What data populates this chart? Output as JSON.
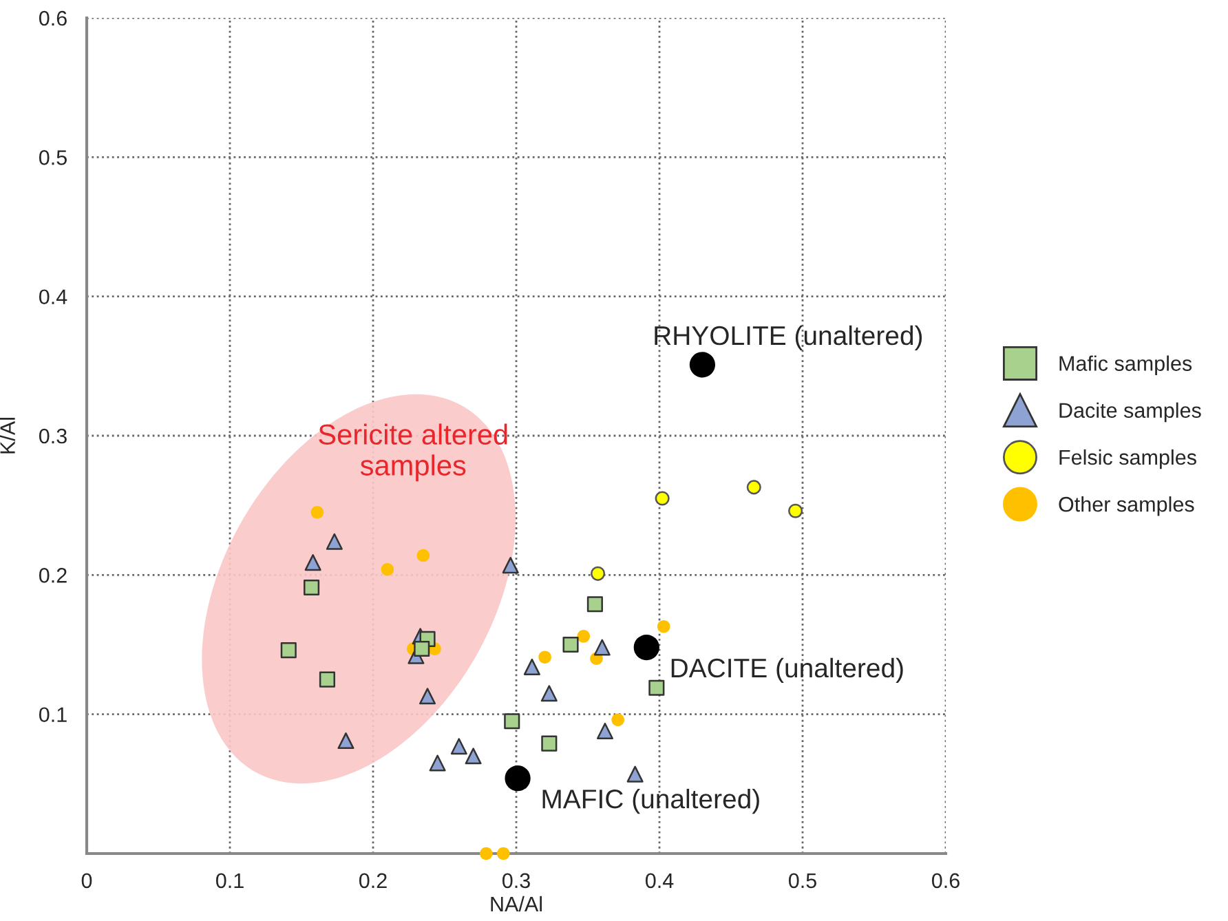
{
  "chart_data": {
    "type": "scatter",
    "xlabel": "NA/Al",
    "ylabel": "K/Al",
    "xlim": [
      0,
      0.6
    ],
    "ylim": [
      0,
      0.6
    ],
    "xticks": [
      0,
      0.1,
      0.2,
      0.3,
      0.4,
      0.5,
      0.6
    ],
    "yticks": [
      0.1,
      0.2,
      0.3,
      0.4,
      0.5,
      0.6
    ],
    "grid": true,
    "legend": "right",
    "series": [
      {
        "name": "Mafic samples",
        "color": "#a9d18e",
        "marker": "square",
        "x": [
          0.157,
          0.141,
          0.168,
          0.238,
          0.234,
          0.355,
          0.338,
          0.398,
          0.297,
          0.323
        ],
        "values": [
          0.191,
          0.146,
          0.125,
          0.154,
          0.147,
          0.179,
          0.15,
          0.119,
          0.095,
          0.079
        ]
      },
      {
        "name": "Dacite samples",
        "color": "#8ea3d3",
        "marker": "triangle",
        "x": [
          0.173,
          0.158,
          0.233,
          0.23,
          0.238,
          0.181,
          0.245,
          0.26,
          0.27,
          0.296,
          0.36,
          0.311,
          0.323,
          0.362,
          0.383
        ],
        "values": [
          0.224,
          0.209,
          0.156,
          0.142,
          0.113,
          0.081,
          0.065,
          0.077,
          0.07,
          0.207,
          0.148,
          0.134,
          0.115,
          0.088,
          0.057
        ]
      },
      {
        "name": "Felsic samples",
        "color": "#ffff00",
        "marker": "circle",
        "x": [
          0.357,
          0.402,
          0.466,
          0.495
        ],
        "values": [
          0.201,
          0.255,
          0.263,
          0.246
        ]
      },
      {
        "name": "Other samples",
        "color": "#ffc000",
        "marker": "circle",
        "x": [
          0.161,
          0.21,
          0.235,
          0.228,
          0.243,
          0.403,
          0.347,
          0.32,
          0.356,
          0.371,
          0.279,
          0.291
        ],
        "values": [
          0.245,
          0.204,
          0.214,
          0.147,
          0.147,
          0.163,
          0.156,
          0.141,
          0.14,
          0.096,
          0.0,
          0.0
        ]
      },
      {
        "color": "#000000",
        "marker": "circle",
        "x": [
          0.43,
          0.391,
          0.301
        ],
        "values": [
          0.351,
          0.148,
          0.054
        ]
      }
    ],
    "annotations": [
      {
        "text": "RHYOLITE (unaltered)",
        "x": 0.43,
        "y": 0.351
      },
      {
        "text": "DACITE (unaltered)",
        "x": 0.391,
        "y": 0.148
      },
      {
        "text": "MAFIC (unaltered)",
        "x": 0.301,
        "y": 0.054
      },
      "Sericite altered\nsamples"
    ]
  }
}
